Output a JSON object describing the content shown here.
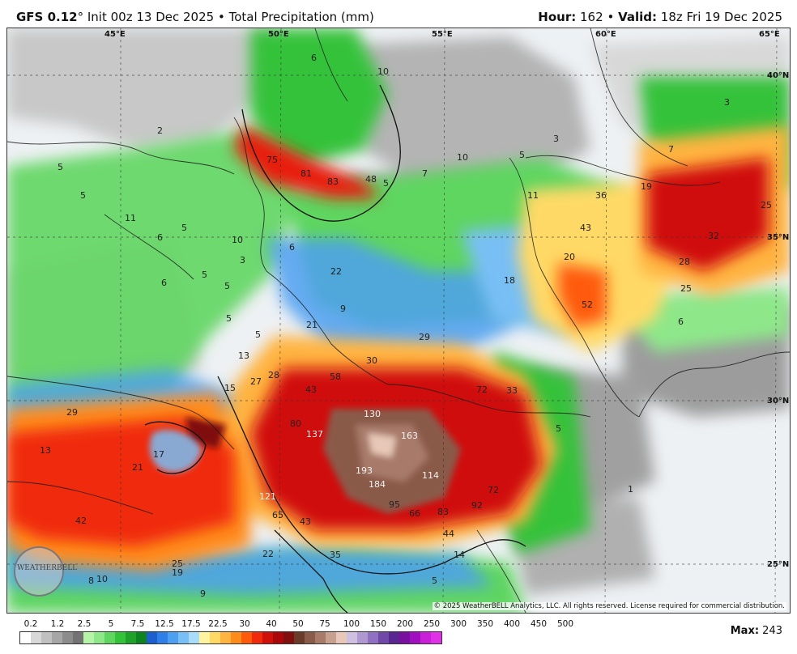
{
  "header": {
    "model": "GFS 0.12",
    "degree": "°",
    "init": "Init 00z 13 Dec 2025",
    "bullet": "•",
    "product": "Total Precipitation (mm)",
    "hour_label": "Hour:",
    "hour_value": "162",
    "valid_label": "Valid:",
    "valid_value": "18z Fri 19 Dec 2025"
  },
  "map": {
    "copyright": "© 2025 WeatherBELL Analytics, LLC. All rights reserved. License required for commercial distribution.",
    "logo_text": "WEATHERBELL",
    "gridlines": {
      "longitudes": [
        {
          "label": "45°E"
        },
        {
          "label": "50°E"
        },
        {
          "label": "55°E"
        },
        {
          "label": "60°E"
        },
        {
          "label": "65°E"
        }
      ],
      "latitudes": [
        {
          "label": "40°N"
        },
        {
          "label": "35°N"
        },
        {
          "label": "30°N"
        },
        {
          "label": "25°N"
        }
      ]
    },
    "value_labels": [
      "2",
      "5",
      "5",
      "11",
      "5",
      "6",
      "10",
      "3",
      "6",
      "5",
      "5",
      "5",
      "13",
      "15",
      "27",
      "28",
      "43",
      "58",
      "80",
      "137",
      "193",
      "184",
      "121",
      "65",
      "43",
      "35",
      "22",
      "25",
      "19",
      "10",
      "8",
      "9",
      "17",
      "21",
      "42",
      "29",
      "13",
      "75",
      "81",
      "83",
      "48",
      "5",
      "7",
      "10",
      "5",
      "3",
      "7",
      "11",
      "36",
      "43",
      "19",
      "25",
      "32",
      "28",
      "25",
      "6",
      "20",
      "18",
      "52",
      "22",
      "9",
      "21",
      "29",
      "30",
      "72",
      "33",
      "5",
      "130",
      "163",
      "114",
      "72",
      "95",
      "66",
      "83",
      "92",
      "44",
      "14",
      "5",
      "1",
      "3",
      "6",
      "10",
      "6",
      "5"
    ]
  },
  "legend": {
    "labels": [
      "0.2",
      "1.2",
      "2.5",
      "5",
      "7.5",
      "12.5",
      "17.5",
      "22.5",
      "30",
      "40",
      "50",
      "75",
      "100",
      "150",
      "200",
      "250",
      "300",
      "350",
      "400",
      "450",
      "500"
    ],
    "colors": [
      "#ffffff",
      "#d8d8d8",
      "#c0c0c0",
      "#a6a6a6",
      "#8c8c8c",
      "#737373",
      "#b4f5a8",
      "#8ee88a",
      "#5fd660",
      "#34c23a",
      "#1ea22a",
      "#0e8420",
      "#1e5fd0",
      "#2f7fe8",
      "#4d9ff0",
      "#78bff5",
      "#a8dcf8",
      "#fff3a0",
      "#ffd966",
      "#ffb340",
      "#ff8c1a",
      "#ff5a0a",
      "#f02a0a",
      "#d0100a",
      "#a8080a",
      "#801010",
      "#6a3a2a",
      "#8a5a4a",
      "#a87a6a",
      "#c8a090",
      "#e8c8b8",
      "#cfc0e0",
      "#b098d0",
      "#9070c0",
      "#7048a8",
      "#582890",
      "#7a10a0",
      "#a010c0",
      "#c820d8",
      "#e030e8"
    ],
    "max_label": "Max:",
    "max_value": "243"
  }
}
